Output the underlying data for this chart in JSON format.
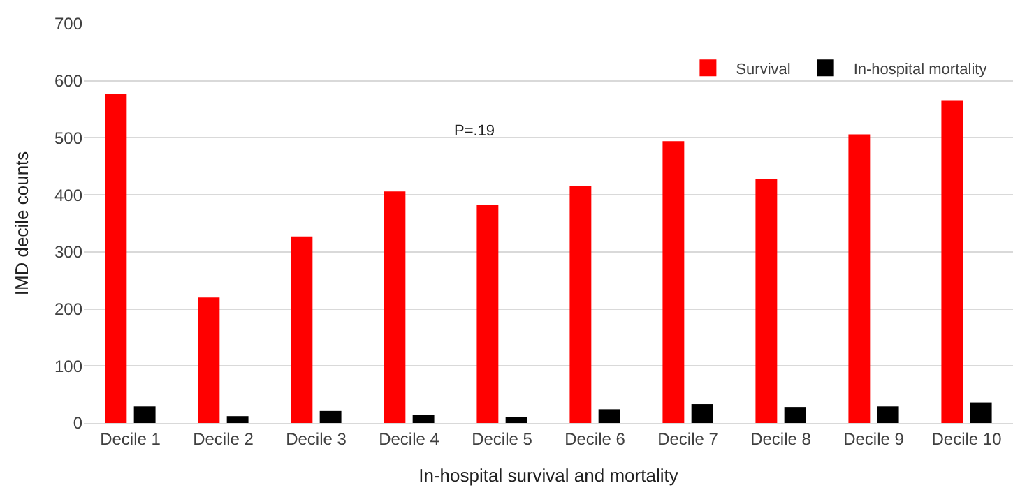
{
  "chart_data": {
    "type": "bar",
    "xlabel": "In-hospital survival and mortality",
    "ylabel": "IMD decile counts",
    "categories": [
      "Decile 1",
      "Decile 2",
      "Decile 3",
      "Decile 4",
      "Decile 5",
      "Decile 6",
      "Decile 7",
      "Decile 8",
      "Decile 9",
      "Decile 10"
    ],
    "series": [
      {
        "name": "Survival",
        "color": "#ff0000",
        "values": [
          577,
          220,
          327,
          406,
          382,
          416,
          494,
          428,
          506,
          566
        ]
      },
      {
        "name": "In-hospital mortality",
        "color": "#000000",
        "values": [
          29,
          12,
          21,
          14,
          10,
          24,
          33,
          28,
          29,
          36
        ]
      }
    ],
    "ylim": [
      0,
      700
    ],
    "yticks": [
      0,
      100,
      200,
      300,
      400,
      500,
      600,
      700
    ],
    "grid": "y",
    "legend": "top right",
    "annotations": [
      "P=.19"
    ]
  }
}
